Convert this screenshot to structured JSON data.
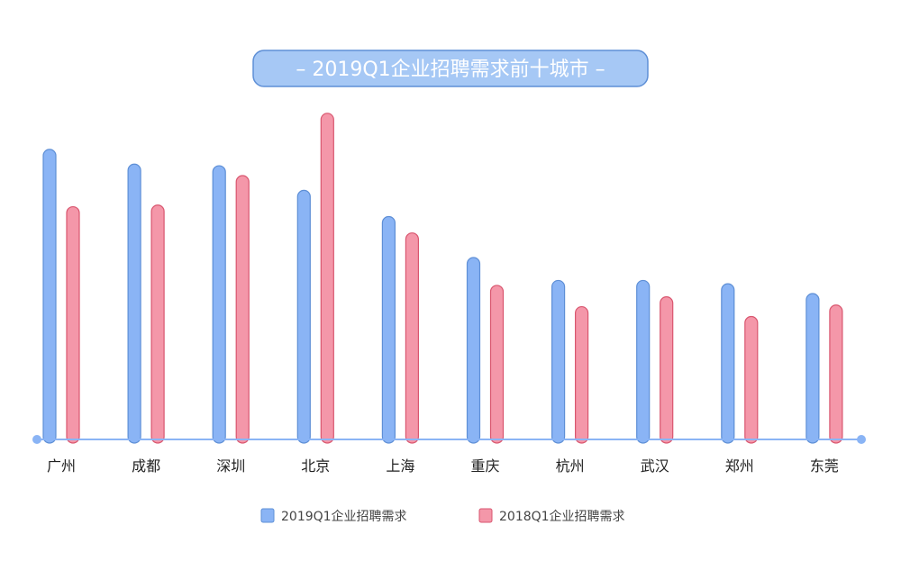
{
  "chart_data": {
    "type": "bar",
    "title": "2019Q1企业招聘需求前十城市",
    "categories": [
      "广州",
      "成都",
      "深圳",
      "北京",
      "上海",
      "重庆",
      "杭州",
      "武汉",
      "郑州",
      "东莞"
    ],
    "series": [
      {
        "name": "2019Q1企业招聘需求",
        "color": "#8ab4f5",
        "stroke": "#5e8fd6",
        "values": [
          88.5,
          84,
          83.5,
          76,
          68,
          55.5,
          48.5,
          48.5,
          47.5,
          44.5
        ]
      },
      {
        "name": "2018Q1企业招聘需求",
        "color": "#f497a9",
        "stroke": "#d9566f",
        "values": [
          71,
          71.5,
          80.5,
          99.5,
          63,
          47,
          40.5,
          43.5,
          37.5,
          41
        ]
      }
    ],
    "ylim": [
      0,
      100
    ],
    "xlabel": "",
    "ylabel": "",
    "grid": false,
    "legend_position": "bottom",
    "axis_color": "#8ab4f5"
  }
}
